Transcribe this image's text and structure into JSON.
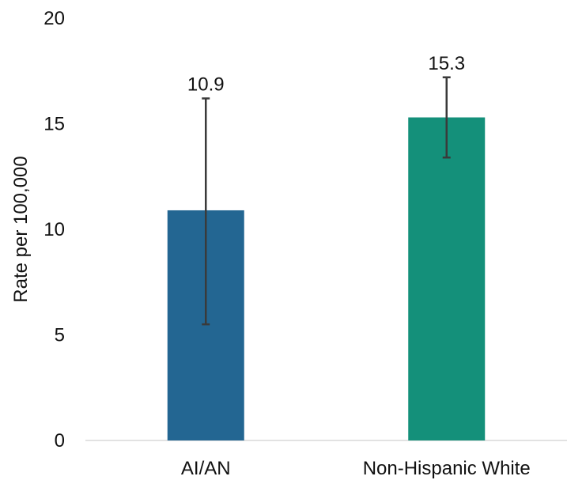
{
  "chart_data": {
    "type": "bar",
    "title": "",
    "xlabel": "",
    "ylabel": "Rate per 100,000",
    "ylim": [
      0,
      20
    ],
    "yticks": [
      0,
      5,
      10,
      15,
      20
    ],
    "grid": false,
    "categories": [
      "AI/AN",
      "Non-Hispanic White"
    ],
    "values": [
      10.9,
      15.3
    ],
    "data_labels": [
      "10.9",
      "15.3"
    ],
    "error_bars": [
      {
        "lower": 5.5,
        "upper": 16.2
      },
      {
        "lower": 13.4,
        "upper": 17.2
      }
    ],
    "colors": [
      "#236692",
      "#14907a"
    ]
  }
}
